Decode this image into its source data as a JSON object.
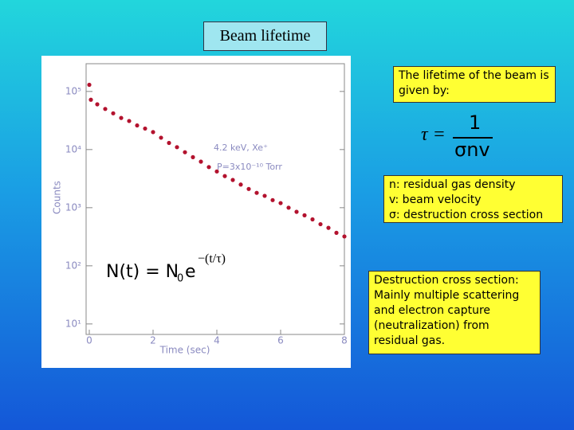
{
  "slide_title": "Beam lifetime",
  "chart_data": {
    "type": "scatter",
    "x_label": "Time (sec)",
    "y_label": "Counts",
    "annotations": [
      "4.2 keV, Xe⁺",
      "P=3x10⁻¹⁰ Torr"
    ],
    "log_y": true,
    "color": "#b3122e",
    "x": [
      0,
      0.05,
      0.25,
      0.5,
      0.75,
      1,
      1.25,
      1.5,
      1.75,
      2,
      2.25,
      2.5,
      2.75,
      3,
      3.25,
      3.5,
      3.75,
      4,
      4.25,
      4.5,
      4.75,
      5,
      5.25,
      5.5,
      5.75,
      6,
      6.25,
      6.5,
      6.75,
      7,
      7.25,
      7.5,
      7.75,
      8
    ],
    "values": [
      130000,
      72000,
      60000,
      50000,
      42000,
      35000,
      31000,
      26000,
      23000,
      20000,
      16000,
      13000,
      11000,
      9000,
      7400,
      6200,
      5000,
      4200,
      3500,
      3000,
      2500,
      2100,
      1800,
      1600,
      1350,
      1200,
      1000,
      850,
      740,
      630,
      520,
      450,
      370,
      320
    ],
    "xlim": [
      0,
      8
    ],
    "ylim": [
      6.6,
      300000
    ],
    "xticks": [
      0,
      2,
      4,
      6,
      8
    ],
    "yticks": [
      {
        "value": 10,
        "label": "10¹"
      },
      {
        "value": 100,
        "label": "10²"
      },
      {
        "value": 1000,
        "label": "10³"
      },
      {
        "value": 10000,
        "label": "10⁴"
      },
      {
        "value": 100000,
        "label": "10⁵"
      }
    ],
    "formula": {
      "left": "N(t) = N",
      "sub": "0",
      "base": "e",
      "exponent": "−(t/τ)"
    }
  },
  "lifetime_box": {
    "text": "The lifetime of the beam is given by:"
  },
  "lifetime_formula": {
    "left": "τ =",
    "numerator": "1",
    "denominator": "σnv"
  },
  "symbols_box": {
    "lines": [
      "n: residual gas density",
      "v: beam velocity",
      "σ: destruction cross section"
    ]
  },
  "destruction_box": {
    "text": "Destruction cross section: Mainly multiple scattering and electron capture (neutralization) from residual gas."
  }
}
